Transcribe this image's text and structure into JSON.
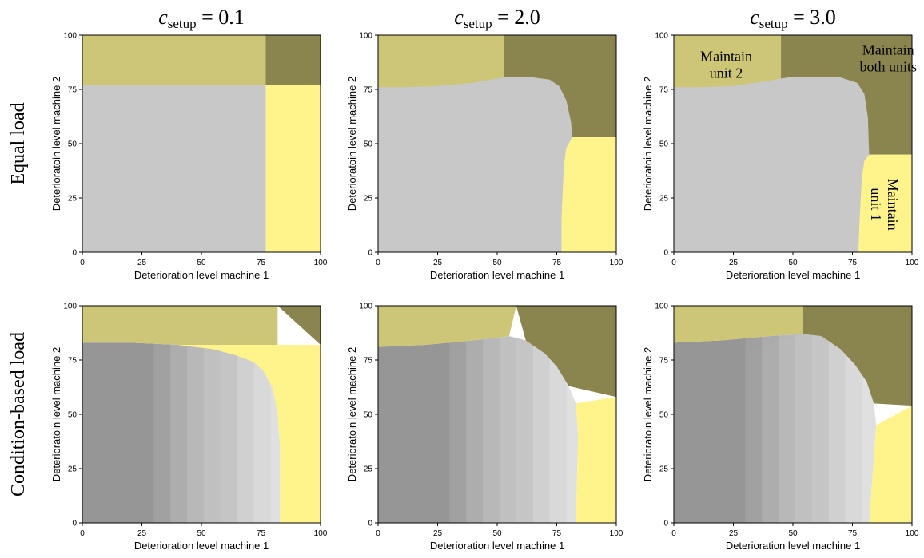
{
  "colors": {
    "maintain_unit_1": "#fff48c",
    "maintain_unit_2": "#cdc676",
    "maintain_both": "#8a844f",
    "continue_shades": [
      "#f5f5f5",
      "#ebebeb",
      "#e0e0e0",
      "#d4d4d4",
      "#c8c8c8",
      "#bcbcbc",
      "#b0b0b0",
      "#a4a4a4",
      "#989898",
      "#8e8e8e"
    ],
    "axis": "#000000"
  },
  "column_titles": [
    {
      "base": "c",
      "sub": "setup",
      "rest": " = 0.1"
    },
    {
      "base": "c",
      "sub": "setup",
      "rest": " = 2.0"
    },
    {
      "base": "c",
      "sub": "setup",
      "rest": " = 3.0"
    }
  ],
  "row_labels": [
    "Equal load",
    "Condition-based load"
  ],
  "chart_data": [
    {
      "type": "heatmap",
      "row": 0,
      "col": 0,
      "mode": "equal",
      "xlabel": "Deterioration level machine 1",
      "ylabel": "Deterioratoin level machine 2",
      "xlim": [
        0,
        100
      ],
      "ylim": [
        0,
        100
      ],
      "xticks": [
        "0",
        "25",
        "50",
        "75",
        "100"
      ],
      "yticks": [
        "0",
        "25",
        "50",
        "75",
        "100"
      ],
      "threshold_unit1": 77,
      "threshold_unit2_curve": [
        [
          0,
          77
        ],
        [
          77,
          77
        ]
      ],
      "unit1_curve": [
        [
          77,
          0
        ],
        [
          77,
          77
        ]
      ],
      "both_region_x": 77,
      "both_region_y": 77,
      "annotations": []
    },
    {
      "type": "heatmap",
      "row": 0,
      "col": 1,
      "mode": "equal",
      "xlabel": "Deterioration level machine 1",
      "ylabel": "Deterioratoin level machine 2",
      "xlim": [
        0,
        100
      ],
      "ylim": [
        0,
        100
      ],
      "xticks": [
        "0",
        "25",
        "50",
        "75",
        "100"
      ],
      "yticks": [
        "0",
        "25",
        "50",
        "75",
        "100"
      ],
      "top_curve": [
        [
          0,
          76
        ],
        [
          10,
          76
        ],
        [
          25,
          76.5
        ],
        [
          40,
          78
        ],
        [
          50,
          80
        ],
        [
          53,
          80.5
        ],
        [
          65,
          80.5
        ],
        [
          72,
          79.5
        ],
        [
          76,
          76.5
        ],
        [
          79,
          70
        ],
        [
          81,
          60
        ],
        [
          81.5,
          53
        ]
      ],
      "right_curve": [
        [
          81.5,
          53
        ],
        [
          79,
          48
        ],
        [
          78,
          40
        ],
        [
          77.5,
          28
        ],
        [
          77,
          15
        ],
        [
          77,
          0
        ]
      ],
      "both_corner": [
        53,
        53
      ],
      "annotations": []
    },
    {
      "type": "heatmap",
      "row": 0,
      "col": 2,
      "mode": "equal",
      "xlabel": "Deterioration level machine 1",
      "ylabel": "Deterioratoin level machine 2",
      "xlim": [
        0,
        100
      ],
      "ylim": [
        0,
        100
      ],
      "xticks": [
        "0",
        "25",
        "50",
        "75",
        "100"
      ],
      "yticks": [
        "0",
        "25",
        "50",
        "75",
        "100"
      ],
      "top_curve": [
        [
          0,
          76
        ],
        [
          10,
          76
        ],
        [
          25,
          76.5
        ],
        [
          40,
          79
        ],
        [
          45,
          80
        ],
        [
          48,
          80.5
        ],
        [
          70,
          80.5
        ],
        [
          77,
          78
        ],
        [
          80,
          73
        ],
        [
          81.5,
          62
        ],
        [
          82,
          45
        ]
      ],
      "right_curve": [
        [
          82,
          45
        ],
        [
          80,
          42
        ],
        [
          79,
          35
        ],
        [
          78.5,
          25
        ],
        [
          78,
          15
        ],
        [
          77.5,
          0
        ]
      ],
      "both_corner": [
        45,
        45
      ],
      "annotations": [
        {
          "text": [
            "Maintain",
            "unit 2"
          ],
          "x": 22,
          "y": 88,
          "rotate": 0
        },
        {
          "text": [
            "Maintain",
            "both units"
          ],
          "x": 90,
          "y": 91,
          "rotate": 0
        },
        {
          "text": [
            "Maintain",
            "unit 1"
          ],
          "x": 90,
          "y": 22,
          "rotate": 90
        }
      ]
    },
    {
      "type": "heatmap",
      "row": 1,
      "col": 0,
      "mode": "condition",
      "xlabel": "Deterioration level machine 1",
      "ylabel": "Deterioratoin level machine 2",
      "xlim": [
        0,
        100
      ],
      "ylim": [
        0,
        100
      ],
      "xticks": [
        "0",
        "25",
        "50",
        "75",
        "100"
      ],
      "yticks": [
        "0",
        "25",
        "50",
        "75",
        "100"
      ],
      "top_curve": [
        [
          0,
          83
        ],
        [
          20,
          83
        ],
        [
          40,
          82
        ],
        [
          55,
          80
        ],
        [
          65,
          77
        ],
        [
          72,
          74
        ],
        [
          76,
          70
        ],
        [
          80,
          62
        ],
        [
          82,
          50
        ],
        [
          83,
          35
        ],
        [
          83,
          0
        ]
      ],
      "unit1_x": 83,
      "unit2_y": 83,
      "both_x": 82,
      "both_y": 82,
      "annotations": []
    },
    {
      "type": "heatmap",
      "row": 1,
      "col": 1,
      "mode": "condition",
      "xlabel": "Deterioration level machine 1",
      "ylabel": "Deterioratoin level machine 2",
      "xlim": [
        0,
        100
      ],
      "ylim": [
        0,
        100
      ],
      "xticks": [
        "0",
        "25",
        "50",
        "75",
        "100"
      ],
      "yticks": [
        "0",
        "25",
        "50",
        "75",
        "100"
      ],
      "top_curve": [
        [
          0,
          81
        ],
        [
          20,
          82
        ],
        [
          40,
          84
        ],
        [
          55,
          86
        ],
        [
          62,
          84
        ],
        [
          70,
          78
        ],
        [
          75,
          72
        ],
        [
          80,
          63
        ],
        [
          83,
          55
        ],
        [
          84,
          40
        ],
        [
          83.5,
          20
        ],
        [
          83,
          0
        ]
      ],
      "unit1_x": 83,
      "unit2_y": 86,
      "both_x": 58,
      "both_y": 58,
      "annotations": []
    },
    {
      "type": "heatmap",
      "row": 1,
      "col": 2,
      "mode": "condition",
      "xlabel": "Deterioration level machine 1",
      "ylabel": "Deterioratoin level machine 2",
      "xlim": [
        0,
        100
      ],
      "ylim": [
        0,
        100
      ],
      "xticks": [
        "0",
        "25",
        "50",
        "75",
        "100"
      ],
      "yticks": [
        "0",
        "25",
        "50",
        "75",
        "100"
      ],
      "top_curve": [
        [
          0,
          83
        ],
        [
          20,
          84
        ],
        [
          40,
          86
        ],
        [
          54,
          87
        ],
        [
          62,
          86
        ],
        [
          70,
          80
        ],
        [
          76,
          73
        ],
        [
          81,
          65
        ],
        [
          84,
          55
        ],
        [
          85,
          45
        ],
        [
          84,
          30
        ],
        [
          83,
          15
        ],
        [
          82,
          0
        ]
      ],
      "unit1_x": 82,
      "unit2_y": 87,
      "both_x": 54,
      "both_y": 54,
      "annotations": []
    }
  ]
}
